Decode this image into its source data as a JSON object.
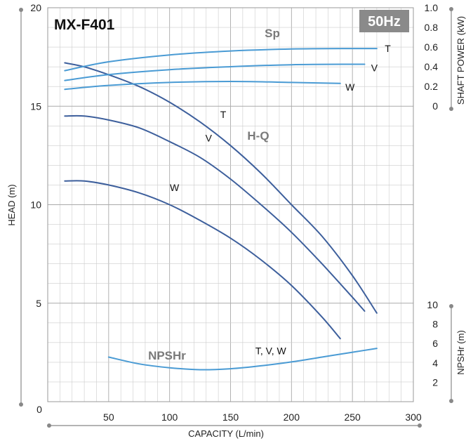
{
  "chart_data": {
    "type": "line",
    "title": "MX-F401",
    "badge": "50Hz",
    "xlabel": "CAPACITY (L/min)",
    "ylabel_left": "HEAD (m)",
    "ylabel_right_top": "SHAFT POWER (kW)",
    "ylabel_right_bottom": "NPSHr (m)",
    "xlim": [
      0,
      300
    ],
    "x_ticks": [
      "50",
      "100",
      "150",
      "200",
      "250",
      "300"
    ],
    "x_origin_label": "0",
    "head_ylim": [
      0,
      20
    ],
    "head_ticks": [
      "5",
      "10",
      "15",
      "20"
    ],
    "power_ylim": [
      0,
      1.0
    ],
    "power_ticks": [
      "0",
      "0.2",
      "0.4",
      "0.6",
      "0.8",
      "1.0"
    ],
    "npsh_ylim": [
      0,
      10
    ],
    "npsh_ticks": [
      "2",
      "4",
      "6",
      "8",
      "10"
    ],
    "grid": true,
    "colors": {
      "head_curve": "#3d5f9c",
      "power_curve": "#4a9bd4",
      "npsh_curve": "#4a9bd4",
      "badge_bg": "#8a8a8a",
      "grid": "#cccccc",
      "axis": "#888888"
    },
    "group_labels": {
      "head": "H-Q",
      "power": "Sp",
      "npsh": "NPSHr"
    },
    "head_series": [
      {
        "name": "T",
        "x": [
          14,
          30,
          50,
          75,
          100,
          125,
          150,
          175,
          200,
          225,
          250,
          270
        ],
        "y": [
          17.2,
          17.0,
          16.6,
          16.0,
          15.2,
          14.2,
          13.0,
          11.6,
          10.0,
          8.4,
          6.4,
          4.5
        ]
      },
      {
        "name": "V",
        "x": [
          14,
          30,
          50,
          75,
          100,
          125,
          150,
          175,
          200,
          225,
          250,
          260
        ],
        "y": [
          14.5,
          14.5,
          14.3,
          13.9,
          13.2,
          12.4,
          11.3,
          10.0,
          8.6,
          7.0,
          5.3,
          4.6
        ]
      },
      {
        "name": "W",
        "x": [
          14,
          30,
          50,
          75,
          100,
          125,
          150,
          175,
          200,
          225,
          240
        ],
        "y": [
          11.2,
          11.2,
          11.0,
          10.6,
          10.0,
          9.2,
          8.3,
          7.2,
          5.9,
          4.3,
          3.2
        ]
      }
    ],
    "power_series": [
      {
        "name": "T",
        "x": [
          14,
          50,
          100,
          150,
          200,
          250,
          270
        ],
        "y": [
          0.36,
          0.45,
          0.52,
          0.56,
          0.58,
          0.585,
          0.585
        ]
      },
      {
        "name": "V",
        "x": [
          14,
          50,
          100,
          150,
          200,
          250,
          260
        ],
        "y": [
          0.26,
          0.32,
          0.37,
          0.4,
          0.42,
          0.425,
          0.425
        ]
      },
      {
        "name": "W",
        "x": [
          14,
          50,
          100,
          150,
          200,
          240
        ],
        "y": [
          0.17,
          0.21,
          0.24,
          0.25,
          0.24,
          0.23
        ]
      }
    ],
    "npsh_series": [
      {
        "name": "T, V, W",
        "x": [
          50,
          75,
          100,
          125,
          150,
          175,
          200,
          225,
          250,
          270
        ],
        "y": [
          4.6,
          3.9,
          3.5,
          3.3,
          3.4,
          3.7,
          4.1,
          4.6,
          5.1,
          5.5
        ]
      }
    ]
  }
}
